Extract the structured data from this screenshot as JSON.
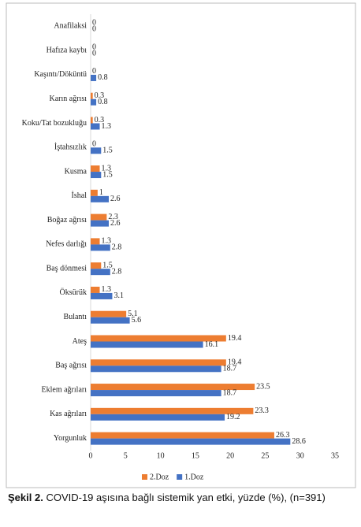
{
  "chart_data": {
    "type": "hbar",
    "categories": [
      "Anafilaksi",
      "Hafıza kaybı",
      "Kaşıntı/Döküntü",
      "Karın ağrısı",
      "Koku/Tat bozukluğu",
      "İştahsızlık",
      "Kusma",
      "İshal",
      "Boğaz ağrısı",
      "Nefes darlığı",
      "Baş dönmesi",
      "Öksürük",
      "Bulantı",
      "Ateş",
      "Baş ağrısı",
      "Eklem ağrıları",
      "Kas ağrıları",
      "Yorgunluk"
    ],
    "series": [
      {
        "name": "2.Doz",
        "color": "#ed7d31",
        "values": [
          0,
          0,
          0,
          0.3,
          0.3,
          0,
          1.3,
          1,
          2.3,
          1.3,
          1.5,
          1.3,
          5.1,
          19.4,
          19.4,
          23.5,
          23.3,
          26.3
        ]
      },
      {
        "name": "1.Doz",
        "color": "#4472c4",
        "values": [
          0,
          0,
          0.8,
          0.8,
          1.3,
          1.5,
          1.5,
          2.6,
          2.6,
          2.8,
          2.8,
          3.1,
          5.6,
          16.1,
          18.7,
          18.7,
          19.2,
          28.6
        ]
      }
    ],
    "xlim": [
      0,
      35
    ],
    "xticks": [
      0,
      5,
      10,
      15,
      20,
      25,
      30,
      35
    ],
    "grid": false,
    "legend": "bottom"
  },
  "caption": {
    "label": "Şekil 2.",
    "text": "COVID-19 aşısına bağlı sistemik yan etki, yüzde (%), (n=391)"
  }
}
